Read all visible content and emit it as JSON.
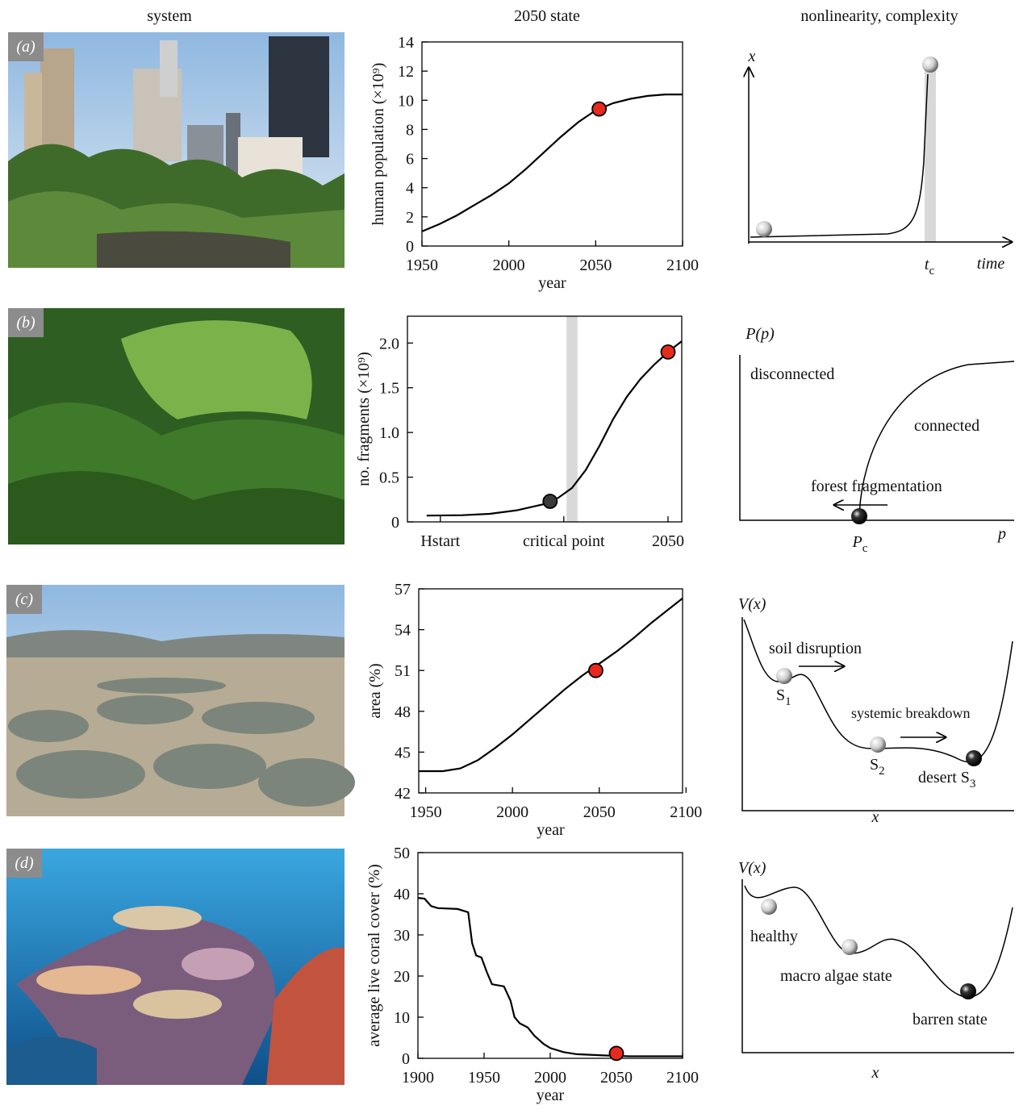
{
  "headers": {
    "system": "system",
    "state": "2050 state",
    "nonlinearity": "nonlinearity, complexity"
  },
  "panel_labels": [
    "(a)",
    "(b)",
    "(c)",
    "(d)"
  ],
  "chart_data": [
    {
      "type": "line",
      "xlabel": "year",
      "ylabel": "human population (×10⁹)",
      "x": [
        1950,
        1960,
        1970,
        1980,
        1990,
        2000,
        2010,
        2020,
        2030,
        2040,
        2050,
        2060,
        2070,
        2080,
        2090,
        2100
      ],
      "series": [
        {
          "color": "#000000",
          "values": [
            1.0,
            1.5,
            2.1,
            2.8,
            3.5,
            4.3,
            5.3,
            6.4,
            7.5,
            8.5,
            9.3,
            9.8,
            10.1,
            10.3,
            10.4,
            10.4
          ]
        }
      ],
      "markers": [
        {
          "x": 2052,
          "y": 9.4,
          "color": "#e8291c"
        }
      ],
      "xlim": [
        1950,
        2100
      ],
      "ylim": [
        0,
        14
      ],
      "xticks": [
        1950,
        2000,
        2050,
        2100
      ],
      "yticks": [
        0,
        2,
        4,
        6,
        8,
        10,
        12,
        14
      ]
    },
    {
      "type": "line",
      "ylabel": "no. fragments (×10⁹)",
      "x": [
        0.7,
        2,
        3,
        4,
        5,
        5.5,
        6,
        6.5,
        7,
        7.5,
        8,
        8.5,
        9,
        9.5,
        10
      ],
      "series": [
        {
          "color": "#000000",
          "values": [
            0.07,
            0.075,
            0.09,
            0.13,
            0.2,
            0.27,
            0.38,
            0.58,
            0.85,
            1.15,
            1.4,
            1.6,
            1.76,
            1.9,
            2.02
          ]
        }
      ],
      "markers": [
        {
          "x": 5.2,
          "y": 0.23,
          "color": "#3a3a3a"
        },
        {
          "x": 9.5,
          "y": 1.9,
          "color": "#e8291c"
        }
      ],
      "band": [
        5.8,
        6.2
      ],
      "xlim": [
        0,
        10
      ],
      "ylim": [
        0,
        2.3
      ],
      "xticks": [
        {
          "value": 1.2,
          "label": "Hstart"
        },
        {
          "value": 5.7,
          "label": "critical point"
        },
        {
          "value": 9.5,
          "label": "2050"
        }
      ],
      "yticks": [
        0,
        0.5,
        {
          "value": 1,
          "label": "1.0"
        },
        1.5,
        {
          "value": 2,
          "label": "2.0"
        }
      ]
    },
    {
      "type": "line",
      "xlabel": "year",
      "ylabel": "area (%)",
      "x": [
        1946,
        1960,
        1970,
        1980,
        1990,
        2000,
        2010,
        2020,
        2030,
        2040,
        2050,
        2060,
        2070,
        2080,
        2090,
        2098
      ],
      "series": [
        {
          "color": "#000000",
          "values": [
            43.6,
            43.6,
            43.8,
            44.4,
            45.3,
            46.3,
            47.4,
            48.5,
            49.6,
            50.6,
            51.5,
            52.4,
            53.4,
            54.5,
            55.5,
            56.3
          ]
        }
      ],
      "markers": [
        {
          "x": 2048,
          "y": 51,
          "color": "#e8291c"
        }
      ],
      "xlim": [
        1946,
        2098
      ],
      "ylim": [
        42,
        57
      ],
      "xticks": [
        1950,
        2000,
        2050,
        2100
      ],
      "yticks": [
        42,
        45,
        48,
        51,
        54,
        57
      ]
    },
    {
      "type": "line",
      "xlabel": "year",
      "ylabel": "average live coral cover (%)",
      "x": [
        1900,
        1905,
        1910,
        1915,
        1930,
        1938,
        1941,
        1944,
        1948,
        1952,
        1956,
        1965,
        1970,
        1973,
        1977,
        1983,
        1988,
        1995,
        2000,
        2010,
        2020,
        2040,
        2060,
        2100
      ],
      "series": [
        {
          "color": "#000000",
          "values": [
            39,
            38.8,
            37,
            36.5,
            36.3,
            35.5,
            28,
            25,
            24.5,
            21,
            18,
            17.5,
            14,
            10,
            8.5,
            7.5,
            5.5,
            3.5,
            2.5,
            1.5,
            1.0,
            0.7,
            0.5,
            0.5
          ]
        }
      ],
      "markers": [
        {
          "x": 2050,
          "y": 1.2,
          "color": "#e8291c"
        }
      ],
      "xlim": [
        1900,
        2100
      ],
      "ylim": [
        0,
        50
      ],
      "xticks": [
        1900,
        1950,
        2000,
        2050,
        2100
      ],
      "yticks": [
        0,
        10,
        20,
        30,
        40,
        50
      ]
    }
  ],
  "diagrams": {
    "a": {
      "y_label": "x",
      "critical": {
        "main": "t",
        "sub": "c"
      },
      "x_label": "time"
    },
    "b": {
      "y_label": "P(p)",
      "left_region": "disconnected",
      "right_region": "connected",
      "arrow_label": "forest fragmentation",
      "critical": {
        "main": "P",
        "sub": "c"
      },
      "x_label": "p"
    },
    "c": {
      "y_label": "V(x)",
      "first_arrow": "soil disruption",
      "s1": {
        "main": "S",
        "sub": "1"
      },
      "second_arrow": "systemic breakdown",
      "s2": {
        "main": "S",
        "sub": "2"
      },
      "s3": {
        "main": "desert S",
        "sub": "3"
      },
      "x_label": "x"
    },
    "d": {
      "y_label": "V(x)",
      "state1": "healthy",
      "state2": "macro algae state",
      "state3": "barren state",
      "x_label": "x"
    }
  }
}
